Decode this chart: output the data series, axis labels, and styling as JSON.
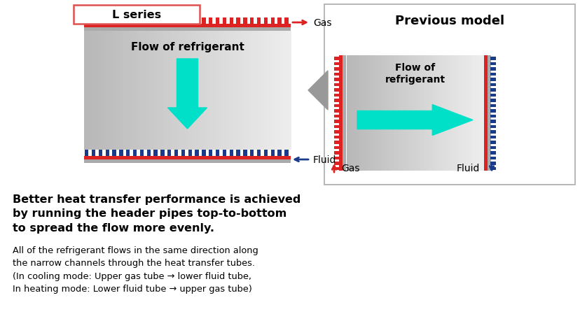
{
  "bg_color": "#ffffff",
  "l_series_label": "L series",
  "prev_model_label": "Previous model",
  "l_flow_text": "Flow of refrigerant",
  "prev_flow_text": "Flow of\nrefrigerant",
  "gas_label": "Gas",
  "fluid_label": "Fluid",
  "bold_line1": "Better heat transfer performance is achieved",
  "bold_line2": "by running the header pipes top-to-bottom",
  "bold_line3": "to spread the flow more evenly.",
  "desc_text": "All of the refrigerant flows in the same direction along\nthe narrow channels through the heat transfer tubes.\n(In cooling mode: Upper gas tube → lower fluid tube,\nIn heating mode: Lower fluid tube → upper gas tube)",
  "cyan_color": "#00e0c8",
  "red_color": "#dd2222",
  "blue_color": "#1a3a8a",
  "l_series_border": "#e05050",
  "gray_bar": "#999999"
}
